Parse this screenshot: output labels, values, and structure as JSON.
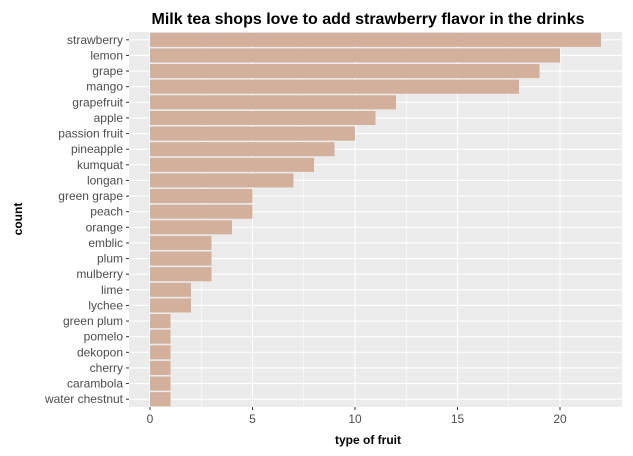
{
  "chart_data": {
    "type": "bar",
    "orientation": "horizontal",
    "title": "Milk tea shops love to add strawberry flavor in the drinks",
    "xlabel": "type of fruit",
    "ylabel": "count",
    "categories": [
      "strawberry",
      "lemon",
      "grape",
      "mango",
      "grapefruit",
      "apple",
      "passion fruit",
      "pineapple",
      "kumquat",
      "longan",
      "green grape",
      "peach",
      "orange",
      "emblic",
      "plum",
      "mulberry",
      "lime",
      "lychee",
      "green plum",
      "pomelo",
      "dekopon",
      "cherry",
      "carambola",
      "water chestnut"
    ],
    "values": [
      22,
      20,
      19,
      18,
      12,
      11,
      10,
      9,
      8,
      7,
      5,
      5,
      4,
      3,
      3,
      3,
      2,
      2,
      1,
      1,
      1,
      1,
      1,
      1
    ],
    "xlim": [
      0,
      22
    ],
    "xticks": [
      "0",
      "5",
      "10",
      "15",
      "20"
    ],
    "bar_color": "#d2b09b",
    "panel_background": "#ebebeb",
    "grid": true
  }
}
